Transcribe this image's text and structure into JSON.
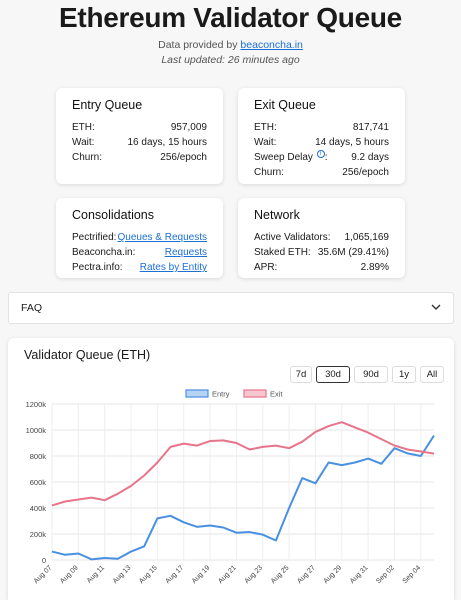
{
  "header": {
    "title": "Ethereum Validator Queue",
    "data_provided_prefix": "Data provided by",
    "data_provider_link": "beaconcha.in",
    "last_updated": "Last updated: 26 minutes ago"
  },
  "entry_queue": {
    "title": "Entry Queue",
    "rows": [
      {
        "label": "ETH:",
        "value": "957,009"
      },
      {
        "label": "Wait:",
        "value": "16 days, 15 hours"
      },
      {
        "label": "Churn:",
        "value": "256/epoch"
      }
    ]
  },
  "exit_queue": {
    "title": "Exit Queue",
    "eth_label": "ETH:",
    "eth_value": "817,741",
    "wait_label": "Wait:",
    "wait_value": "14 days, 5 hours",
    "sweep_label": "Sweep Delay",
    "sweep_suffix": ":",
    "sweep_value": "9.2 days",
    "churn_label": "Churn:",
    "churn_value": "256/epoch"
  },
  "consolidations": {
    "title": "Consolidations",
    "rows": [
      {
        "label": "Pectrified:",
        "link": "Queues & Requests"
      },
      {
        "label": "Beaconcha.in:",
        "link": "Requests"
      },
      {
        "label": "Pectra.info:",
        "link": "Rates by Entity"
      }
    ]
  },
  "network": {
    "title": "Network",
    "rows": [
      {
        "label": "Active Validators:",
        "value": "1,065,169"
      },
      {
        "label": "Staked ETH:",
        "value": "35.6M (29.41%)"
      },
      {
        "label": "APR:",
        "value": "2.89%"
      }
    ]
  },
  "faq": {
    "label": "FAQ",
    "icon": "chevron-down-icon"
  },
  "chart_section": {
    "title": "Validator Queue (ETH)",
    "ranges": [
      "7d",
      "30d",
      "90d",
      "1y",
      "All"
    ],
    "selected_range": "30d"
  },
  "colors": {
    "entry": "#4a90e2",
    "exit": "#e8748a",
    "link": "#1d6fd6"
  },
  "chart_data": {
    "type": "line",
    "title": "",
    "x": [
      "Aug 07",
      "Aug 08",
      "Aug 09",
      "Aug 10",
      "Aug 11",
      "Aug 12",
      "Aug 13",
      "Aug 14",
      "Aug 15",
      "Aug 16",
      "Aug 17",
      "Aug 18",
      "Aug 19",
      "Aug 20",
      "Aug 21",
      "Aug 22",
      "Aug 23",
      "Aug 24",
      "Aug 25",
      "Aug 26",
      "Aug 27",
      "Aug 28",
      "Aug 29",
      "Aug 30",
      "Aug 31",
      "Sep 01",
      "Sep 02",
      "Sep 03",
      "Sep 04",
      "Sep 05"
    ],
    "x_tick_labels": [
      "Aug 07",
      "Aug 09",
      "Aug 11",
      "Aug 13",
      "Aug 15",
      "Aug 17",
      "Aug 19",
      "Aug 21",
      "Aug 23",
      "Aug 25",
      "Aug 27",
      "Aug 29",
      "Aug 31",
      "Sep 02",
      "Sep 04"
    ],
    "y_tick_labels": [
      "0",
      "200k",
      "400k",
      "600k",
      "800k",
      "1000k",
      "1200k"
    ],
    "ylim": [
      0,
      1200000
    ],
    "legend_position": "top",
    "grid": true,
    "series": [
      {
        "name": "Entry",
        "values": [
          65000,
          40000,
          50000,
          5000,
          15000,
          10000,
          65000,
          105000,
          320000,
          340000,
          290000,
          255000,
          265000,
          250000,
          210000,
          215000,
          195000,
          150000,
          400000,
          630000,
          590000,
          750000,
          730000,
          750000,
          780000,
          740000,
          860000,
          820000,
          800000,
          957000
        ]
      },
      {
        "name": "Exit",
        "values": [
          420000,
          450000,
          465000,
          480000,
          460000,
          510000,
          570000,
          650000,
          750000,
          870000,
          895000,
          880000,
          915000,
          920000,
          900000,
          850000,
          870000,
          880000,
          860000,
          910000,
          985000,
          1030000,
          1060000,
          1020000,
          980000,
          930000,
          880000,
          850000,
          835000,
          818000
        ]
      }
    ]
  }
}
